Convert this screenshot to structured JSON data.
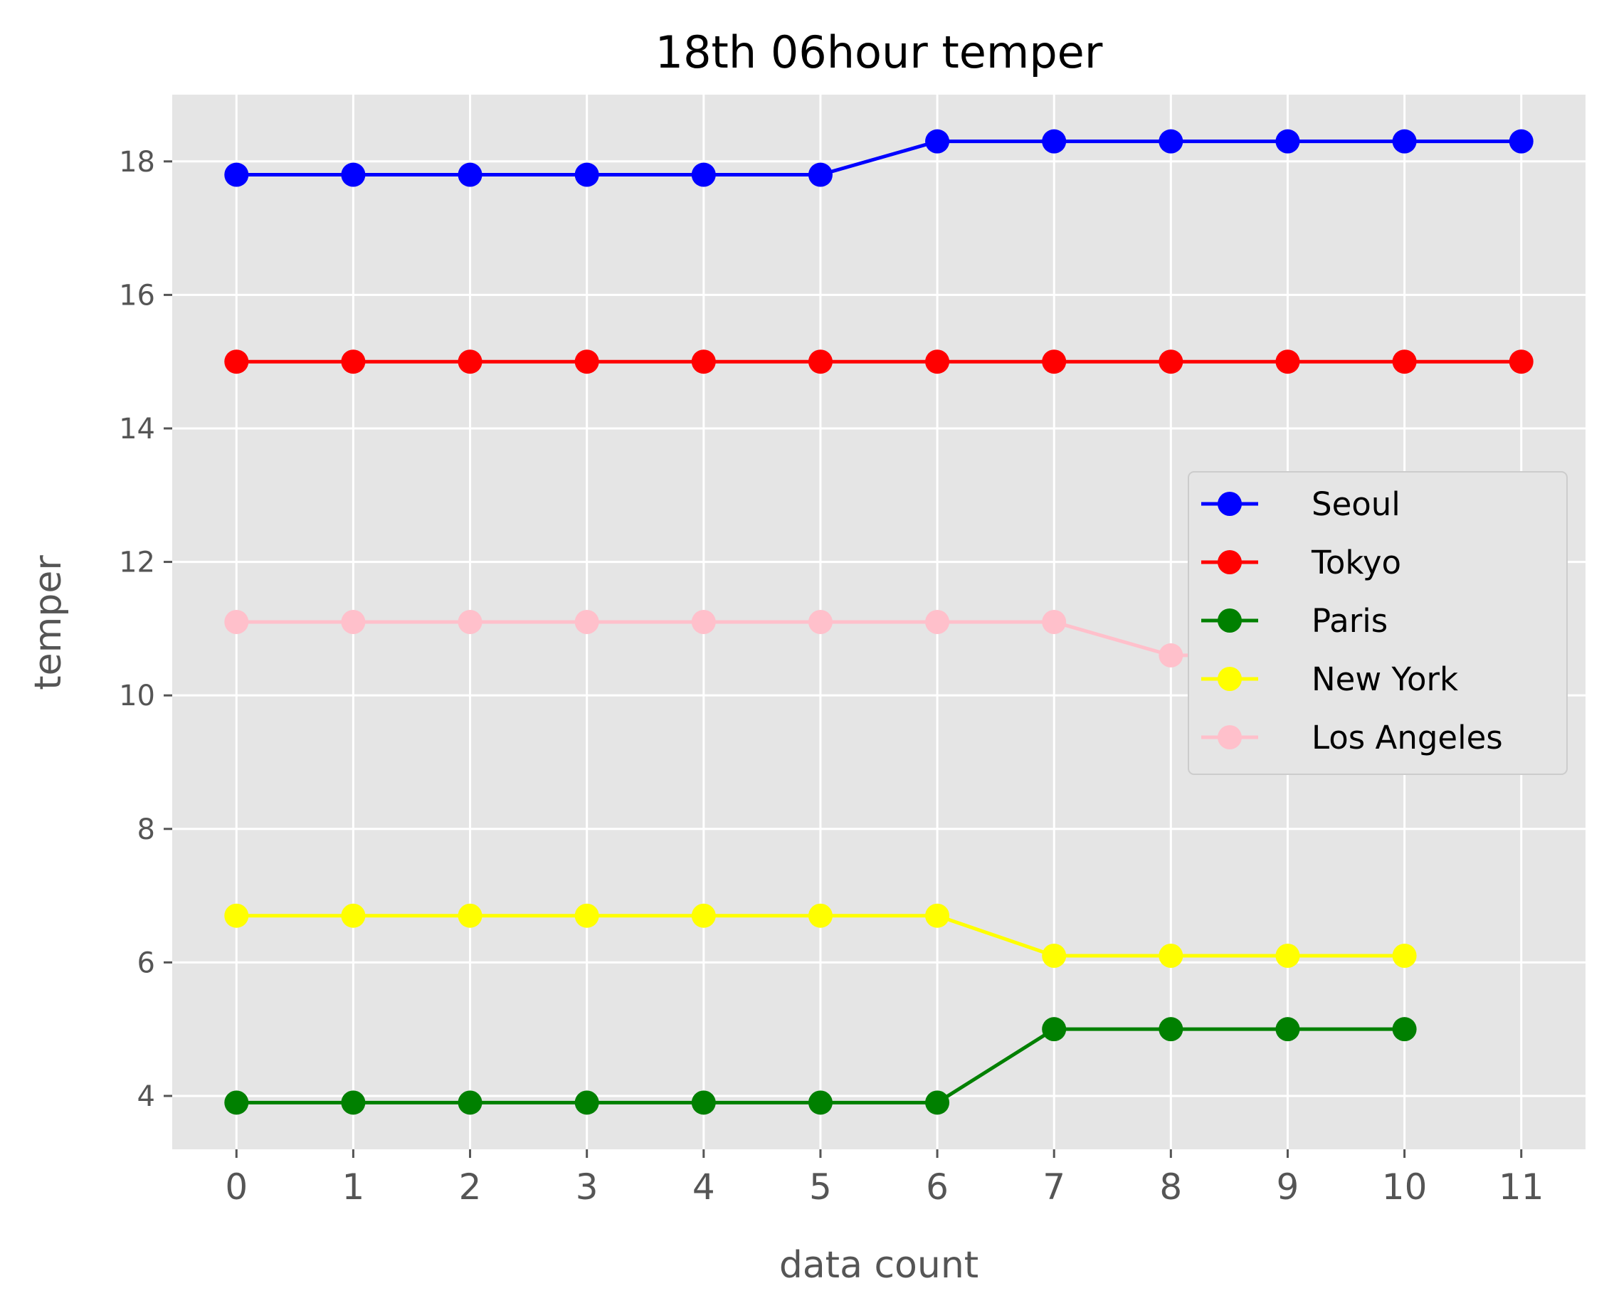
{
  "chart_data": {
    "type": "line",
    "title": "18th 06hour temper",
    "xlabel": "data count",
    "ylabel": "temper",
    "xlim": [
      -0.55,
      11.55
    ],
    "ylim": [
      3.2,
      19.0
    ],
    "xticks": [
      0,
      1,
      2,
      3,
      4,
      5,
      6,
      7,
      8,
      9,
      10,
      11
    ],
    "yticks": [
      4,
      6,
      8,
      10,
      12,
      14,
      16,
      18
    ],
    "grid": true,
    "legend_position": "center-right",
    "series": [
      {
        "name": "Seoul",
        "color": "#0000ff",
        "x": [
          0,
          1,
          2,
          3,
          4,
          5,
          6,
          7,
          8,
          9,
          10,
          11
        ],
        "values": [
          17.8,
          17.8,
          17.8,
          17.8,
          17.8,
          17.8,
          18.3,
          18.3,
          18.3,
          18.3,
          18.3,
          18.3
        ]
      },
      {
        "name": "Tokyo",
        "color": "#ff0000",
        "x": [
          0,
          1,
          2,
          3,
          4,
          5,
          6,
          7,
          8,
          9,
          10,
          11
        ],
        "values": [
          15,
          15,
          15,
          15,
          15,
          15,
          15,
          15,
          15,
          15,
          15,
          15
        ]
      },
      {
        "name": "Paris",
        "color": "#008000",
        "x": [
          0,
          1,
          2,
          3,
          4,
          5,
          6,
          7,
          8,
          9,
          10
        ],
        "values": [
          3.9,
          3.9,
          3.9,
          3.9,
          3.9,
          3.9,
          3.9,
          5,
          5,
          5,
          5
        ]
      },
      {
        "name": "New York",
        "color": "#ffff00",
        "x": [
          0,
          1,
          2,
          3,
          4,
          5,
          6,
          7,
          8,
          9,
          10
        ],
        "values": [
          6.7,
          6.7,
          6.7,
          6.7,
          6.7,
          6.7,
          6.7,
          6.1,
          6.1,
          6.1,
          6.1
        ]
      },
      {
        "name": "Los Angeles",
        "color": "#ffc0cb",
        "x": [
          0,
          1,
          2,
          3,
          4,
          5,
          6,
          7,
          8,
          9,
          10,
          11
        ],
        "values": [
          11.1,
          11.1,
          11.1,
          11.1,
          11.1,
          11.1,
          11.1,
          11.1,
          10.6,
          10.6,
          10.6,
          10.6
        ]
      }
    ]
  }
}
